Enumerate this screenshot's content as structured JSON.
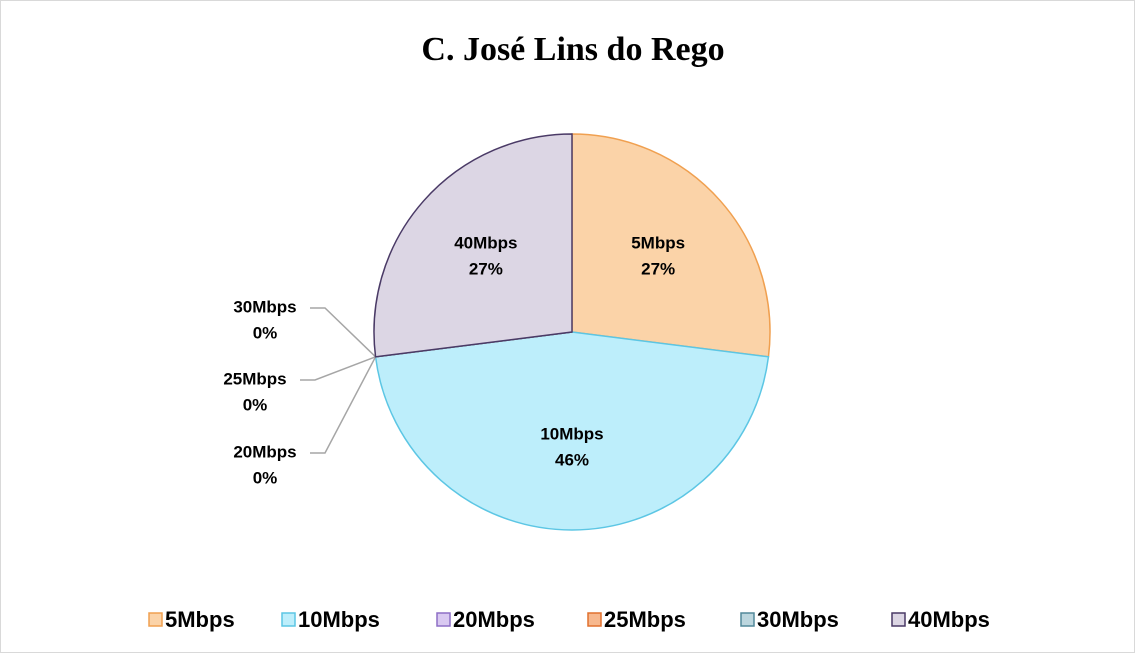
{
  "chart_data": {
    "type": "pie",
    "title": "C. José Lins do Rego",
    "categories": [
      "5Mbps",
      "10Mbps",
      "20Mbps",
      "25Mbps",
      "30Mbps",
      "40Mbps"
    ],
    "values": [
      27,
      46,
      0,
      0,
      0,
      27
    ],
    "value_labels": [
      "27%",
      "46%",
      "0%",
      "0%",
      "0%",
      "27%"
    ],
    "colors": [
      "#fbd3a8",
      "#bdeefb",
      "#d9c9f1",
      "#f7b88e",
      "#bcd6de",
      "#dcd6e4"
    ],
    "legend": "bottom"
  }
}
